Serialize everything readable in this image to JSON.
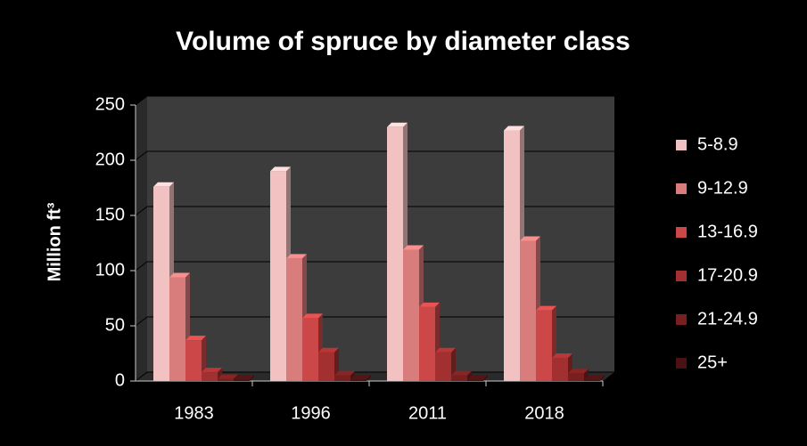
{
  "chart_data": {
    "type": "bar3d",
    "title": "Volume of spruce by diameter class",
    "y_axis_label": "Million ft³",
    "categories": [
      "1983",
      "1996",
      "2011",
      "2018"
    ],
    "series": [
      {
        "name": "5-8.9",
        "color": "#f2c2c2",
        "values": [
          176,
          190,
          230,
          227
        ]
      },
      {
        "name": "9-12.9",
        "color": "#d97c7c",
        "values": [
          94,
          111,
          119,
          127
        ]
      },
      {
        "name": "13-16.9",
        "color": "#cc4848",
        "values": [
          37,
          57,
          67,
          64
        ]
      },
      {
        "name": "17-20.9",
        "color": "#a33030",
        "values": [
          8,
          26,
          26,
          21
        ]
      },
      {
        "name": "21-24.9",
        "color": "#78201f",
        "values": [
          2,
          5,
          5,
          7
        ]
      },
      {
        "name": "25+",
        "color": "#4a1212",
        "values": [
          1,
          1,
          1,
          1
        ]
      }
    ],
    "ylim": [
      0,
      250
    ],
    "yticks": [
      0,
      50,
      100,
      150,
      200,
      250
    ],
    "grid": true,
    "legend": "right"
  }
}
